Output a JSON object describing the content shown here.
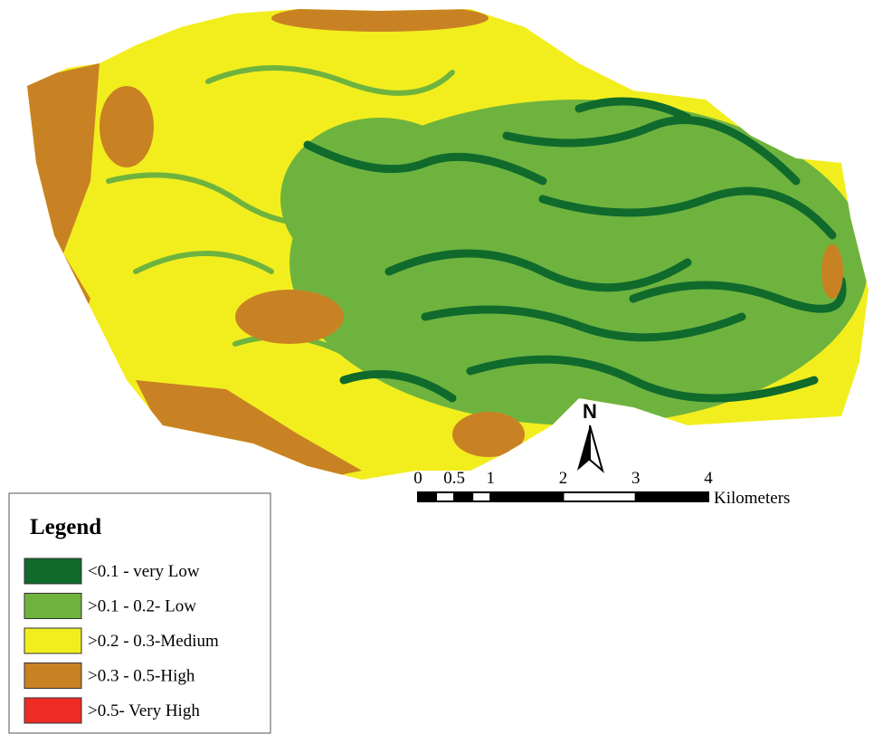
{
  "north_arrow": {
    "label": "N"
  },
  "scale_bar": {
    "ticks": [
      0,
      0.5,
      1,
      2,
      3,
      4
    ],
    "unit": "Kilometers"
  },
  "legend": {
    "title": "Legend",
    "items": [
      {
        "label": "<0.1 - very Low",
        "color": "#0f6a2c"
      },
      {
        "label": ">0.1 - 0.2- Low",
        "color": "#6fb33f"
      },
      {
        "label": ">0.2 - 0.3-Medium",
        "color": "#f2ee1e"
      },
      {
        "label": ">0.3 - 0.5-High",
        "color": "#c98223"
      },
      {
        "label": ">0.5- Very High",
        "color": "#ee2b24"
      }
    ]
  }
}
